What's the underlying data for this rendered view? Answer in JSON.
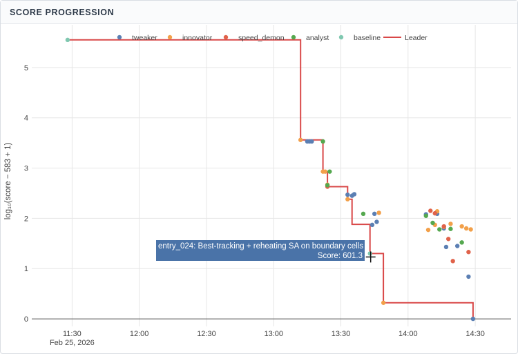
{
  "panel": {
    "title": "SCORE PROGRESSION"
  },
  "chart_data": {
    "type": "scatter",
    "title": "",
    "xlabel": "",
    "ylabel": "log₁₀(score − 583 + 1)",
    "date_label": "Feb 25, 2026",
    "x_ticks": [
      "11:30",
      "12:00",
      "12:30",
      "13:00",
      "13:30",
      "14:00",
      "14:30"
    ],
    "y_ticks": [
      0,
      1,
      2,
      3,
      4,
      5
    ],
    "ylim": [
      -0.15,
      5.85
    ],
    "xlim": [
      "11:12",
      "14:46"
    ],
    "grid": true,
    "legend_position": "top",
    "series": [
      {
        "name": "tweaker",
        "color": "#5b7fb3",
        "points": [
          [
            "13:15",
            3.53
          ],
          [
            "13:16",
            3.53
          ],
          [
            "13:17",
            3.53
          ],
          [
            "13:33",
            2.47
          ],
          [
            "13:35",
            2.45
          ],
          [
            "13:36",
            2.48
          ],
          [
            "13:44",
            1.87
          ],
          [
            "13:46",
            1.93
          ],
          [
            "13:45",
            2.09
          ],
          [
            "14:08",
            2.08
          ],
          [
            "14:13",
            2.09
          ],
          [
            "14:16",
            1.8
          ],
          [
            "14:17",
            1.43
          ],
          [
            "14:22",
            1.45
          ],
          [
            "14:27",
            0.84
          ],
          [
            "14:29",
            0.0
          ]
        ]
      },
      {
        "name": "innovator",
        "color": "#f2a04a",
        "points": [
          [
            "13:12",
            3.56
          ],
          [
            "13:22",
            2.93
          ],
          [
            "13:23",
            2.93
          ],
          [
            "13:24",
            2.67
          ],
          [
            "13:33",
            2.38
          ],
          [
            "13:47",
            2.11
          ],
          [
            "13:49",
            0.32
          ],
          [
            "14:09",
            1.77
          ],
          [
            "14:12",
            1.87
          ],
          [
            "14:13",
            2.14
          ],
          [
            "14:16",
            1.83
          ],
          [
            "14:19",
            1.89
          ],
          [
            "14:24",
            1.84
          ],
          [
            "14:26",
            1.8
          ],
          [
            "14:28",
            1.78
          ]
        ]
      },
      {
        "name": "speed_demon",
        "color": "#e0624a",
        "points": [
          [
            "13:24",
            2.63
          ],
          [
            "14:10",
            2.15
          ],
          [
            "14:12",
            2.1
          ],
          [
            "14:16",
            1.84
          ],
          [
            "14:18",
            1.59
          ],
          [
            "14:20",
            1.15
          ],
          [
            "14:27",
            1.33
          ]
        ]
      },
      {
        "name": "analyst",
        "color": "#55a84f",
        "points": [
          [
            "13:22",
            3.53
          ],
          [
            "13:25",
            2.93
          ],
          [
            "13:24",
            2.66
          ],
          [
            "13:40",
            2.09
          ],
          [
            "14:08",
            2.05
          ],
          [
            "14:11",
            1.91
          ],
          [
            "14:14",
            1.78
          ],
          [
            "14:19",
            1.79
          ],
          [
            "14:24",
            1.52
          ]
        ]
      },
      {
        "name": "baseline",
        "color": "#7fc8b0",
        "points": [
          [
            "11:28",
            5.55
          ],
          [
            "13:43",
            1.3
          ]
        ]
      },
      {
        "name": "Leader",
        "color": "#d94848",
        "type": "step",
        "points": [
          [
            "11:28",
            5.55
          ],
          [
            "13:12",
            5.55
          ],
          [
            "13:12",
            3.56
          ],
          [
            "13:22",
            3.56
          ],
          [
            "13:22",
            2.93
          ],
          [
            "13:24",
            2.93
          ],
          [
            "13:24",
            2.63
          ],
          [
            "13:33",
            2.63
          ],
          [
            "13:33",
            2.38
          ],
          [
            "13:35",
            2.38
          ],
          [
            "13:35",
            1.88
          ],
          [
            "13:43",
            1.88
          ],
          [
            "13:43",
            1.3
          ],
          [
            "13:49",
            1.3
          ],
          [
            "13:49",
            0.32
          ],
          [
            "14:29",
            0.32
          ],
          [
            "14:29",
            0.0
          ]
        ]
      }
    ],
    "tooltip": {
      "line1": "entry_024: Best-tracking + reheating SA on boundary cells",
      "line2": "Score: 601.3"
    }
  }
}
